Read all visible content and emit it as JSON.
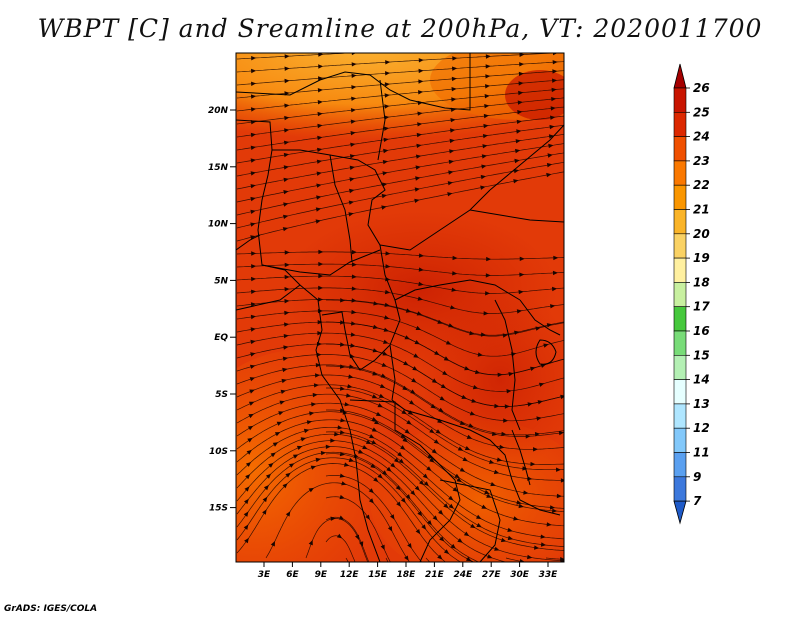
{
  "title": "WBPT [C] and Sreamline at 200hPa, VT: 2020011700",
  "footer": "GrADS: IGES/COLA",
  "map": {
    "lat_labels": [
      "20N",
      "15N",
      "10N",
      "5N",
      "EQ",
      "5S",
      "10S",
      "15S"
    ],
    "lon_labels": [
      "3E",
      "6E",
      "9E",
      "12E",
      "15E",
      "18E",
      "21E",
      "24E",
      "27E",
      "30E",
      "33E"
    ]
  },
  "colorbar": {
    "levels": [
      "26",
      "25",
      "24",
      "23",
      "22",
      "21",
      "20",
      "19",
      "18",
      "17",
      "16",
      "15",
      "14",
      "13",
      "12",
      "11",
      "9",
      "7"
    ],
    "colors": [
      "#a50000",
      "#c81400",
      "#dc2800",
      "#f05000",
      "#fa7800",
      "#fa9600",
      "#fab428",
      "#fad264",
      "#fff0a0",
      "#c8f0a0",
      "#46c83c",
      "#78dc78",
      "#b4f0b4",
      "#e6ffff",
      "#afe6ff",
      "#82c8fa",
      "#5aa0f0",
      "#3c78dc",
      "#1e5ac8"
    ]
  },
  "colors": {
    "field_base": "#e23a08",
    "field_orange": "#f57a00",
    "field_yellow": "#f9a41e",
    "field_dark": "#c81c00"
  }
}
